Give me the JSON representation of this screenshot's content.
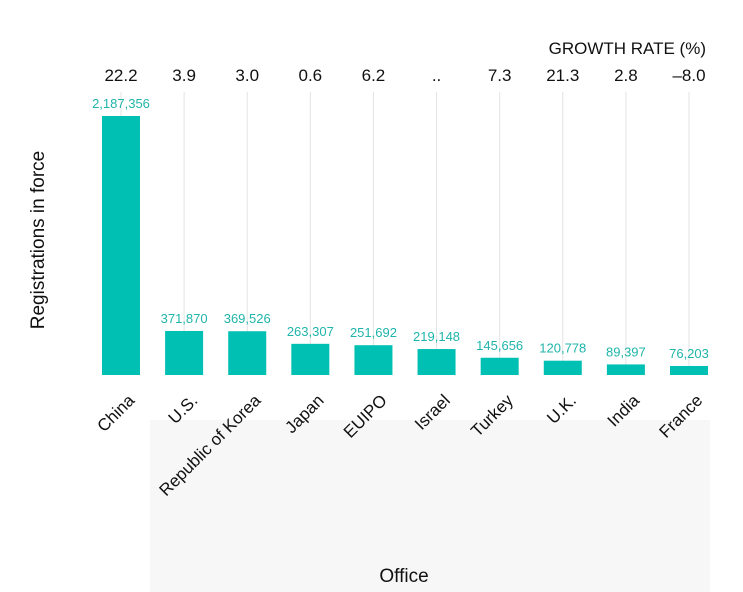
{
  "chart_data": {
    "type": "bar",
    "title": "",
    "xlabel": "Office",
    "ylabel": "Registrations in force",
    "growth_header": "GROWTH RATE (%)",
    "categories": [
      "China",
      "U.S.",
      "Republic of Korea",
      "Japan",
      "EUIPO",
      "Israel",
      "Turkey",
      "U.K.",
      "India",
      "France"
    ],
    "values": [
      2187356,
      371870,
      369526,
      263307,
      251692,
      219148,
      145656,
      120778,
      89397,
      76203
    ],
    "value_labels": [
      "2,187,356",
      "371,870",
      "369,526",
      "263,307",
      "251,692",
      "219,148",
      "145,656",
      "120,778",
      "89,397",
      "76,203"
    ],
    "growth_rates": [
      "22.2",
      "3.9",
      "3.0",
      "0.6",
      "6.2",
      "..",
      "7.3",
      "21.3",
      "2.8",
      "–8.0"
    ],
    "ylim": [
      0,
      2187356
    ],
    "grid": true,
    "bar_color": "#00bfb3",
    "label_color": "#1fb5aa"
  }
}
